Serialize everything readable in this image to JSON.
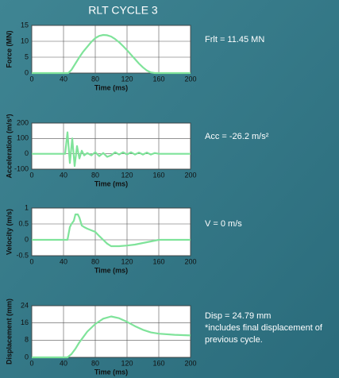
{
  "title": "RLT CYCLE 3",
  "chart_data": [
    {
      "type": "line",
      "xlabel": "Time (ms)",
      "ylabel": "Force (MN)",
      "annotation": [
        "Frlt = 11.45 MN"
      ],
      "color": "#7fe39a",
      "x": [
        0,
        46,
        50,
        55,
        60,
        65,
        70,
        75,
        80,
        85,
        90,
        95,
        100,
        105,
        110,
        115,
        120,
        125,
        130,
        135,
        140,
        145,
        150,
        155,
        200
      ],
      "values": [
        0,
        0,
        1,
        3,
        5,
        6.8,
        8.3,
        9.8,
        11,
        11.7,
        12,
        11.9,
        11.5,
        10.7,
        9.7,
        8.5,
        7.2,
        5.8,
        4.4,
        3,
        1.8,
        0.8,
        0.2,
        0,
        0
      ],
      "xlim": [
        0,
        200
      ],
      "xticks": [
        0,
        40,
        80,
        120,
        160,
        200
      ],
      "ylim": [
        0,
        15
      ],
      "yticks": [
        0,
        5,
        10,
        15
      ],
      "grid": true
    },
    {
      "type": "line",
      "xlabel": "Time (ms)",
      "ylabel": "Acceleration (m/s²)",
      "annotation": [
        "Acc = -26.2 m/s²"
      ],
      "color": "#7fe39a",
      "x": [
        0,
        42,
        45,
        48,
        51,
        54,
        57,
        60,
        63,
        66,
        70,
        75,
        80,
        85,
        90,
        95,
        100,
        105,
        110,
        115,
        120,
        125,
        130,
        135,
        140,
        145,
        150,
        155,
        160,
        200
      ],
      "values": [
        0,
        0,
        140,
        -60,
        100,
        -80,
        50,
        -30,
        20,
        -10,
        5,
        -10,
        10,
        -15,
        5,
        -20,
        -10,
        10,
        -5,
        10,
        -5,
        10,
        -5,
        8,
        -5,
        8,
        -5,
        5,
        0,
        0
      ],
      "xlim": [
        0,
        200
      ],
      "xticks": [
        0,
        40,
        80,
        120,
        160,
        200
      ],
      "ylim": [
        -100,
        200
      ],
      "yticks": [
        -100,
        0,
        100,
        200
      ],
      "grid": true
    },
    {
      "type": "line",
      "xlabel": "Time (ms)",
      "ylabel": "Velocity (m/s)",
      "annotation": [
        "V = 0 m/s"
      ],
      "color": "#7fe39a",
      "x": [
        0,
        45,
        48,
        50,
        53,
        55,
        58,
        60,
        63,
        66,
        70,
        75,
        80,
        85,
        90,
        95,
        100,
        110,
        120,
        130,
        140,
        150,
        160,
        200
      ],
      "values": [
        0,
        0,
        0.4,
        0.5,
        0.6,
        0.8,
        0.8,
        0.7,
        0.45,
        0.4,
        0.35,
        0.3,
        0.25,
        0.12,
        0,
        -0.12,
        -0.2,
        -0.2,
        -0.18,
        -0.15,
        -0.1,
        -0.05,
        0,
        0
      ],
      "xlim": [
        0,
        200
      ],
      "xticks": [
        0,
        40,
        80,
        120,
        160,
        200
      ],
      "ylim": [
        -0.5,
        1
      ],
      "yticks": [
        -0.5,
        0,
        0.5,
        1
      ],
      "grid": true
    },
    {
      "type": "line",
      "xlabel": "Time (ms)",
      "ylabel": "Displacement (mm)",
      "annotation": [
        "Disp = 24.79 mm",
        "*includes final displacement of",
        "previous cycle."
      ],
      "color": "#7fe39a",
      "x": [
        0,
        45,
        50,
        55,
        60,
        65,
        70,
        80,
        90,
        100,
        110,
        120,
        130,
        140,
        150,
        160,
        180,
        200
      ],
      "values": [
        0,
        0,
        1.5,
        4,
        7,
        9.5,
        12,
        15.5,
        18,
        19,
        18.2,
        16.5,
        14.5,
        12.8,
        11.6,
        11,
        10.5,
        10.2
      ],
      "xlim": [
        0,
        200
      ],
      "xticks": [
        0,
        40,
        80,
        120,
        160,
        200
      ],
      "ylim": [
        0,
        24
      ],
      "yticks": [
        0,
        8,
        16,
        24
      ],
      "grid": true
    }
  ]
}
